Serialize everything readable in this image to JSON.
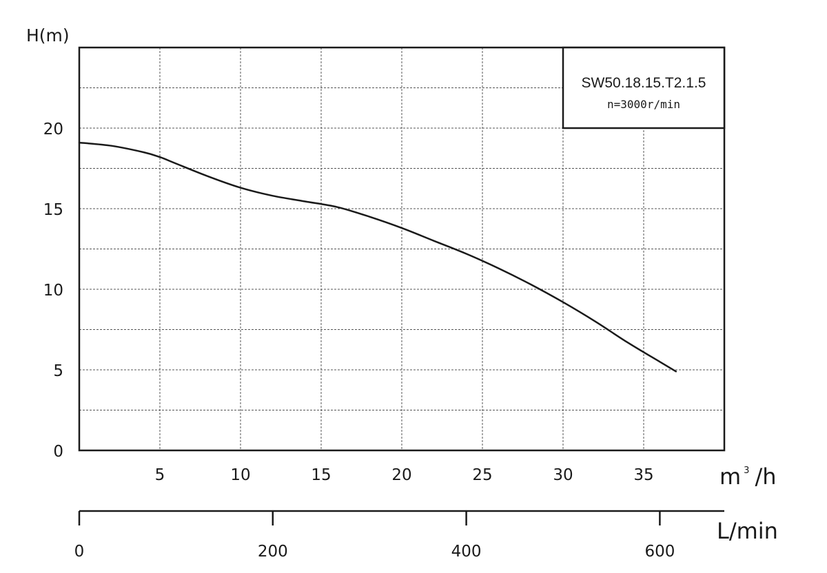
{
  "chart_data": {
    "type": "line",
    "legend": {
      "title": "SW50.18.15.T2.1.5",
      "subtitle": "n=3000r/min",
      "placement": "top-right"
    },
    "ylabel": "H(m)",
    "xlabel": "m³/h",
    "xlabel_base": "m",
    "xlabel_sup": "3",
    "xlabel_rest": "/h",
    "secondary_xlabel": "L/min",
    "xlim": [
      0,
      40
    ],
    "ylim": [
      0,
      25
    ],
    "secondary_xlim": [
      0,
      666.67
    ],
    "x_ticks": [
      5,
      10,
      15,
      20,
      25,
      30,
      35
    ],
    "x_tick_labels": [
      "5",
      "10",
      "15",
      "20",
      "25",
      "30",
      "35"
    ],
    "y_ticks": [
      0,
      5,
      10,
      15,
      20
    ],
    "y_tick_labels": [
      "0",
      "5",
      "10",
      "15",
      "20"
    ],
    "secondary_x_ticks": [
      0,
      200,
      400,
      600
    ],
    "secondary_x_tick_labels": [
      "0",
      "200",
      "400",
      "600"
    ],
    "grid": true,
    "grid_step_x": 5,
    "grid_step_y": 2.5,
    "color": "#1a1a1a",
    "series": [
      {
        "x": [
          0,
          2,
          4,
          5,
          6,
          8,
          10,
          12,
          14,
          16,
          18,
          20,
          22,
          24,
          26,
          28,
          30,
          32,
          34,
          36,
          37
        ],
        "y": [
          19.1,
          18.9,
          18.5,
          18.2,
          17.8,
          17.0,
          16.3,
          15.8,
          15.45,
          15.1,
          14.5,
          13.8,
          13.0,
          12.2,
          11.3,
          10.3,
          9.2,
          8.0,
          6.7,
          5.5,
          4.9
        ]
      }
    ]
  }
}
